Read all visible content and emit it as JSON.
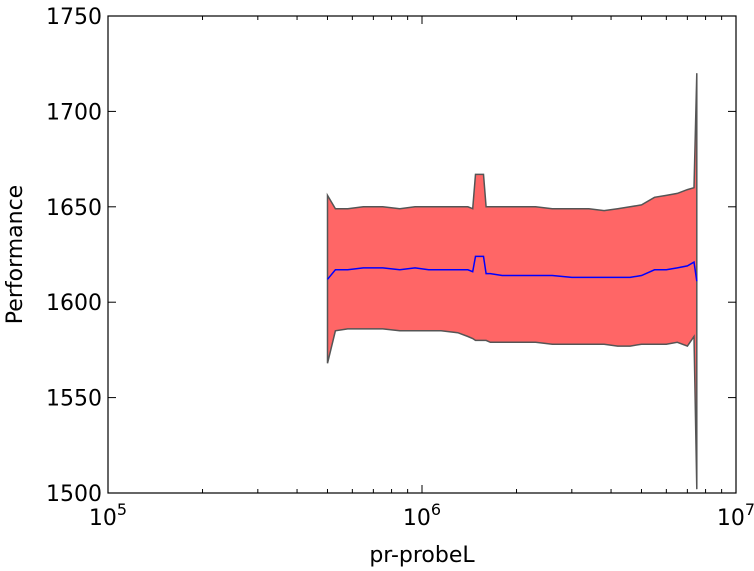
{
  "chart_data": {
    "type": "area",
    "xscale": "log",
    "xlim": [
      100000,
      10000000
    ],
    "ylim": [
      1500,
      1750
    ],
    "xlabel": "pr-probeL",
    "ylabel": "Performance",
    "title": "",
    "grid": false,
    "x_ticks": [
      {
        "value": 100000,
        "base": "10",
        "exp": "5"
      },
      {
        "value": 1000000,
        "base": "10",
        "exp": "6"
      },
      {
        "value": 10000000,
        "base": "10",
        "exp": "7"
      }
    ],
    "y_ticks": [
      1500,
      1550,
      1600,
      1650,
      1700,
      1750
    ],
    "colors": {
      "band": "#ff6666",
      "band_edge": "#555555",
      "mean": "#0000ff"
    },
    "x": [
      500000,
      530000,
      580000,
      650000,
      750000,
      850000,
      950000,
      1050000,
      1150000,
      1300000,
      1400000,
      1450000,
      1480000,
      1520000,
      1570000,
      1600000,
      1650000,
      1800000,
      2000000,
      2300000,
      2600000,
      3000000,
      3400000,
      3800000,
      4200000,
      4600000,
      5000000,
      5500000,
      6000000,
      6500000,
      7000000,
      7350000,
      7500000
    ],
    "series": [
      {
        "role": "upper",
        "values": [
          1656,
          1649,
          1649,
          1650,
          1650,
          1649,
          1650,
          1650,
          1650,
          1650,
          1650,
          1649,
          1667,
          1667,
          1667,
          1650,
          1650,
          1650,
          1650,
          1650,
          1649,
          1649,
          1649,
          1648,
          1649,
          1650,
          1651,
          1655,
          1656,
          1657,
          1659,
          1660,
          1720
        ]
      },
      {
        "role": "mean",
        "values": [
          1612,
          1617,
          1617,
          1618,
          1618,
          1617,
          1618,
          1617,
          1617,
          1617,
          1617,
          1616,
          1624,
          1624,
          1624,
          1615,
          1615,
          1614,
          1614,
          1614,
          1614,
          1613,
          1613,
          1613,
          1613,
          1613,
          1614,
          1617,
          1617,
          1618,
          1619,
          1621,
          1611
        ]
      },
      {
        "role": "lower",
        "values": [
          1568,
          1585,
          1586,
          1586,
          1586,
          1585,
          1585,
          1585,
          1585,
          1584,
          1582,
          1581,
          1580,
          1580,
          1580,
          1580,
          1579,
          1579,
          1579,
          1579,
          1578,
          1578,
          1578,
          1578,
          1577,
          1577,
          1578,
          1578,
          1578,
          1579,
          1577,
          1582,
          1502
        ]
      }
    ]
  }
}
